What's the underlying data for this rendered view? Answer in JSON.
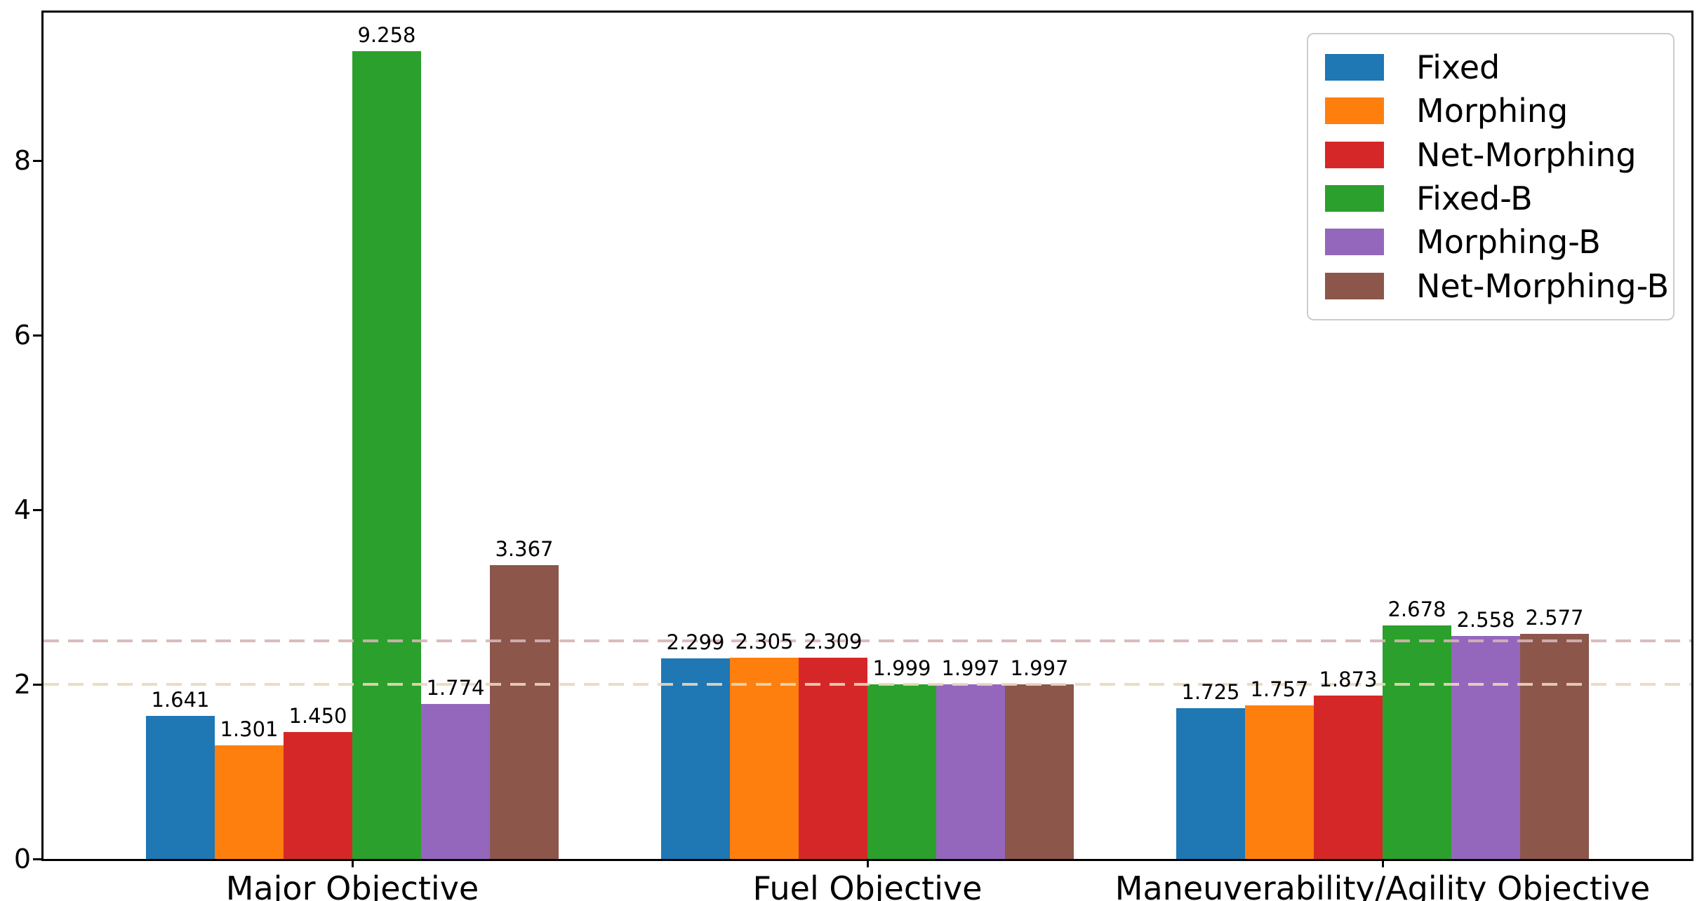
{
  "figure": {
    "background_color": "#ffffff",
    "axes_edge_color": "#000000"
  },
  "chart_data": {
    "type": "bar",
    "title": "",
    "xlabel": "",
    "ylabel": "",
    "grid": false,
    "legend_position": "upper right",
    "categories": [
      "Major Objective",
      "Fuel Objective",
      "Maneuverability/Agility Objective"
    ],
    "series": [
      {
        "name": "Fixed",
        "color": "#1f77b4",
        "values": [
          1.641,
          2.299,
          1.725
        ],
        "labels": [
          "1.641",
          "2.299",
          "1.725"
        ]
      },
      {
        "name": "Morphing",
        "color": "#ff7f0e",
        "values": [
          1.301,
          2.305,
          1.757
        ],
        "labels": [
          "1.301",
          "2.305",
          "1.757"
        ]
      },
      {
        "name": "Net-Morphing",
        "color": "#d62728",
        "values": [
          1.45,
          2.309,
          1.873
        ],
        "labels": [
          "1.450",
          "2.309",
          "1.873"
        ]
      },
      {
        "name": "Fixed-B",
        "color": "#2ca02c",
        "values": [
          9.258,
          1.999,
          2.678
        ],
        "labels": [
          "9.258",
          "1.999",
          "2.678"
        ]
      },
      {
        "name": "Morphing-B",
        "color": "#9467bd",
        "values": [
          1.774,
          1.997,
          2.558
        ],
        "labels": [
          "1.774",
          "1.997",
          "2.558"
        ]
      },
      {
        "name": "Net-Morphing-B",
        "color": "#8c564b",
        "values": [
          3.367,
          1.997,
          2.577
        ],
        "labels": [
          "3.367",
          "1.997",
          "2.577"
        ]
      }
    ],
    "yticks": [
      "0",
      "2",
      "4",
      "6",
      "8"
    ],
    "ytick_values": [
      0,
      2,
      4,
      6,
      8
    ],
    "ylim": [
      0,
      9.72
    ],
    "reference_lines": [
      {
        "y": 2.5,
        "style": "dashed",
        "color": "#d5b4b4"
      },
      {
        "y": 2.0,
        "style": "dashed",
        "color": "#e9d8bc"
      }
    ]
  }
}
